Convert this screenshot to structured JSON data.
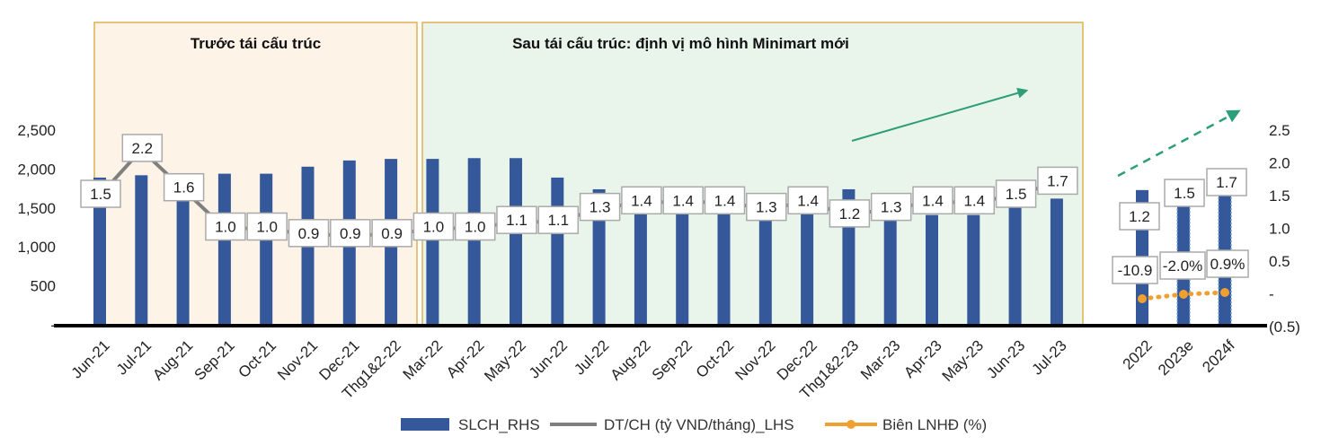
{
  "chart_data": {
    "type": "bar",
    "categories": [
      "Jun-21",
      "Jul-21",
      "Aug-21",
      "Sep-21",
      "Oct-21",
      "Nov-21",
      "Dec-21",
      "Thg1&2-22",
      "Mar-22",
      "Apr-22",
      "May-22",
      "Jun-22",
      "Jul-22",
      "Aug-22",
      "Sep-22",
      "Oct-22",
      "Nov-22",
      "Dec-22",
      "Thg1&2-23",
      "Mar-23",
      "Apr-23",
      "May-23",
      "Jun-23",
      "Jul-23"
    ],
    "annual_categories": [
      "2022",
      "2023e",
      "2024f"
    ],
    "series": [
      {
        "name": "SLCH_RHS",
        "type": "bar",
        "color": "#34589A",
        "values": [
          1890,
          1920,
          1650,
          1940,
          1940,
          2030,
          2110,
          2130,
          2130,
          2140,
          2140,
          1890,
          1740,
          1420,
          1420,
          1420,
          1390,
          1510,
          1740,
          1390,
          1410,
          1410,
          1520,
          1620
        ],
        "annual_values": [
          1730,
          1620,
          1660
        ]
      },
      {
        "name": "DT/CH (tỷ VND/tháng)_LHS",
        "type": "line",
        "color": "#7F7F7F",
        "values": [
          1.5,
          2.2,
          1.6,
          1.0,
          1.0,
          0.9,
          0.9,
          0.9,
          1.0,
          1.0,
          1.1,
          1.1,
          1.3,
          1.4,
          1.4,
          1.4,
          1.3,
          1.4,
          1.2,
          1.3,
          1.4,
          1.4,
          1.5,
          1.7
        ],
        "labels": [
          "1.5",
          "2.2",
          "1.6",
          "1.0",
          "1.0",
          "0.9",
          "0.9",
          "0.9",
          "1.0",
          "1.0",
          "1.1",
          "1.1",
          "1.3",
          "1.4",
          "1.4",
          "1.4",
          "1.3",
          "1.4",
          "1.2",
          "1.3",
          "1.4",
          "1.4",
          "1.5",
          "1.7"
        ],
        "annual_values": [
          1.2,
          1.5,
          1.7
        ],
        "annual_labels": [
          "1.2",
          "1.5",
          "1.7"
        ]
      },
      {
        "name": "Biên LNHĐ (%)",
        "type": "line",
        "color": "#F0A030",
        "annual_values": [
          -10.9,
          -2.0,
          0.9
        ],
        "annual_labels": [
          "-10.9",
          "-2.0%",
          "0.9%"
        ]
      }
    ],
    "regions": [
      {
        "label": "Trước tái cấu trúc",
        "from": "Jun-21",
        "to": "Thg1&2-22",
        "fill": "#FDF3E7"
      },
      {
        "label": "Sau tái cấu trúc: định vị mô hình Minimart mới",
        "from": "Mar-22",
        "to": "Jul-23",
        "fill": "#E9F5EB"
      }
    ],
    "y_left": {
      "ticks": [
        "2,500",
        "2,000",
        "1,500",
        "1,000",
        "500",
        "-"
      ],
      "range": [
        0,
        2500
      ]
    },
    "y_right": {
      "ticks": [
        "2.5",
        "2.0",
        "1.5",
        "1.0",
        "0.5",
        "-",
        "(0.5)"
      ],
      "range": [
        -0.5,
        2.5
      ]
    },
    "legend": {
      "position": "bottom",
      "entries": [
        "SLCH_RHS",
        "DT/CH (tỷ VND/tháng)_LHS",
        "Biên LNHĐ (%)"
      ]
    },
    "grid": false
  },
  "colors": {
    "bar": "#34589A",
    "grey_line": "#7F7F7F",
    "orange": "#F0A030",
    "arrow": "#2E9E7A",
    "region_border": "#E0B050",
    "label_border": "#AAAAAA"
  }
}
